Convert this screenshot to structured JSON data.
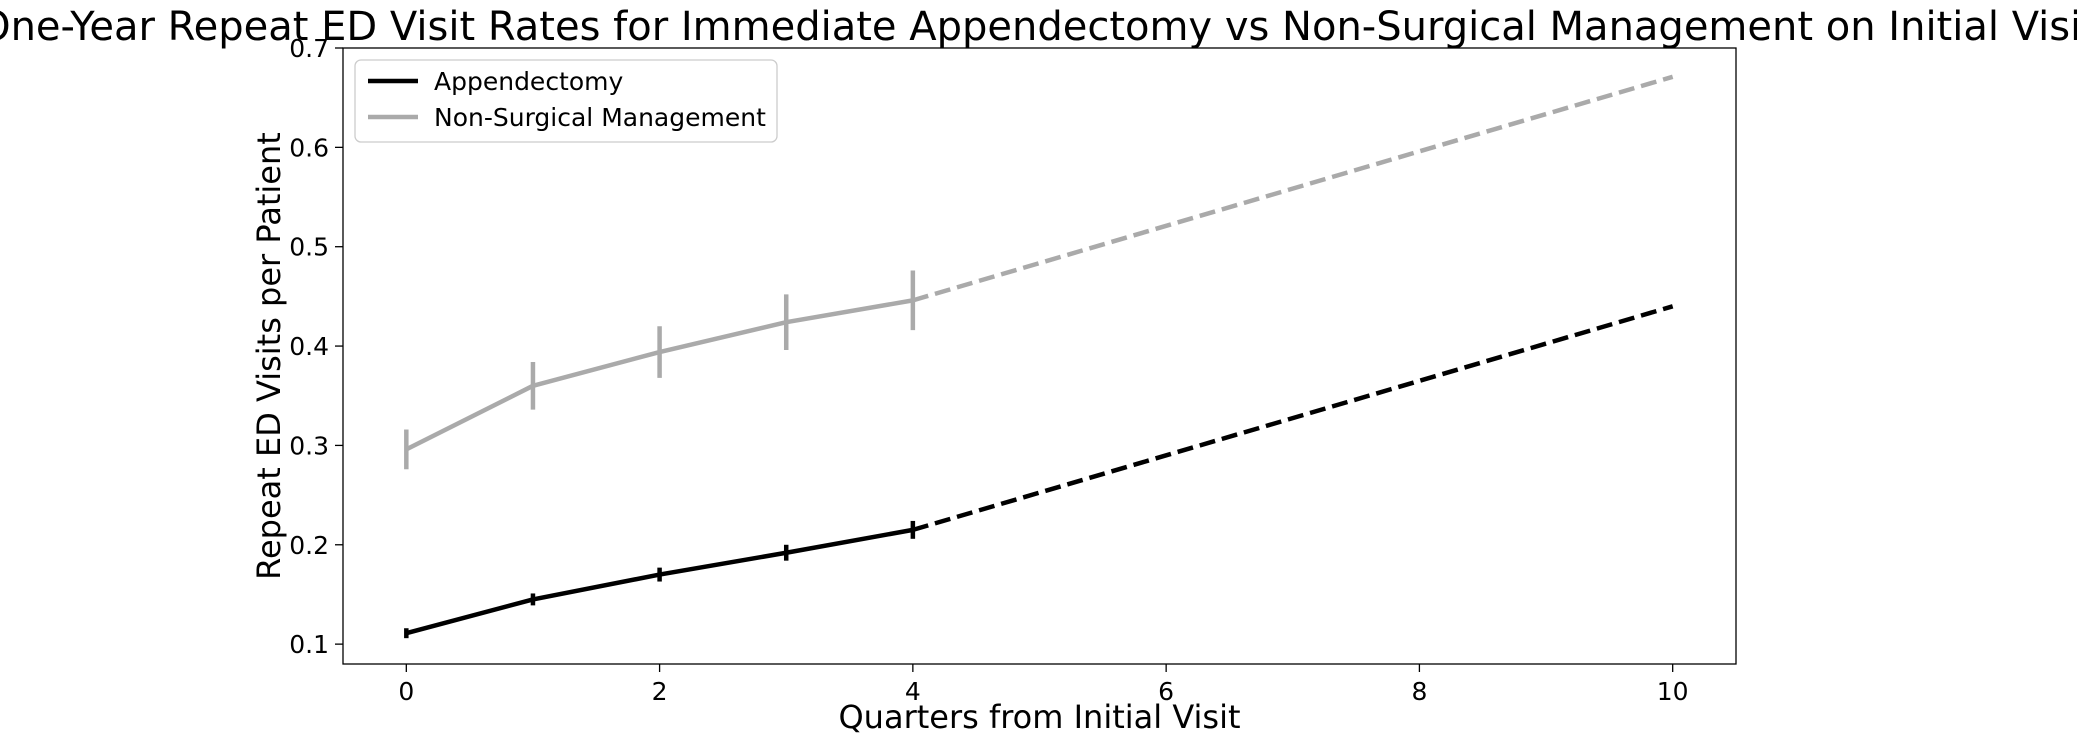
{
  "chart_data": {
    "type": "line",
    "title": "One-Year Repeat ED Visit Rates for Immediate Appendectomy vs Non-Surgical Management on Initial Visit",
    "xlabel": "Quarters from Initial Visit",
    "ylabel": "Repeat ED Visits per Patient",
    "xlim": [
      -0.5,
      10.5
    ],
    "ylim": [
      0.08,
      0.7
    ],
    "xticks": [
      0,
      2,
      4,
      6,
      8,
      10
    ],
    "yticks": [
      0.1,
      0.2,
      0.3,
      0.4,
      0.5,
      0.6,
      0.7
    ],
    "xtick_labels": [
      "0",
      "2",
      "4",
      "6",
      "8",
      "10"
    ],
    "ytick_labels": [
      "0.1",
      "0.2",
      "0.3",
      "0.4",
      "0.5",
      "0.6",
      "0.7"
    ],
    "legend_position": "top-left",
    "grid": false,
    "series": [
      {
        "name": "Appendectomy",
        "color": "#000000",
        "observed": {
          "x": [
            0,
            1,
            2,
            3,
            4
          ],
          "y": [
            0.111,
            0.145,
            0.17,
            0.192,
            0.215
          ],
          "error": [
            0.005,
            0.006,
            0.007,
            0.008,
            0.009
          ]
        },
        "projected": {
          "style": "dashed",
          "x": [
            4,
            10
          ],
          "y": [
            0.215,
            0.44
          ]
        }
      },
      {
        "name": "Non-Surgical Management",
        "color": "#aaaaaa",
        "observed": {
          "x": [
            0,
            1,
            2,
            3,
            4
          ],
          "y": [
            0.296,
            0.36,
            0.394,
            0.424,
            0.446
          ],
          "error": [
            0.02,
            0.024,
            0.026,
            0.028,
            0.03
          ]
        },
        "projected": {
          "style": "dashed",
          "x": [
            4,
            10
          ],
          "y": [
            0.446,
            0.671
          ]
        }
      }
    ]
  }
}
